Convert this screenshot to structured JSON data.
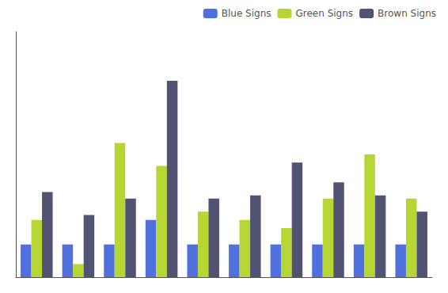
{
  "chart_data": {
    "type": "bar",
    "categories": [
      null,
      null,
      null,
      null,
      null,
      null,
      null,
      null,
      null,
      null
    ],
    "series": [
      {
        "name": "Blue Signs",
        "values": [
          320,
          320,
          320,
          335,
          320,
          320,
          320,
          320,
          320,
          320
        ]
      },
      {
        "name": "Green Signs",
        "values": [
          335,
          308,
          382,
          368,
          340,
          335,
          330,
          348,
          375,
          348
        ]
      },
      {
        "name": "Brown Signs",
        "values": [
          352,
          338,
          348,
          420,
          348,
          350,
          370,
          358,
          350,
          340
        ]
      }
    ],
    "ylim": [
      300,
      450
    ],
    "grid": false,
    "legend": "upper right",
    "tick_labels": false
  }
}
